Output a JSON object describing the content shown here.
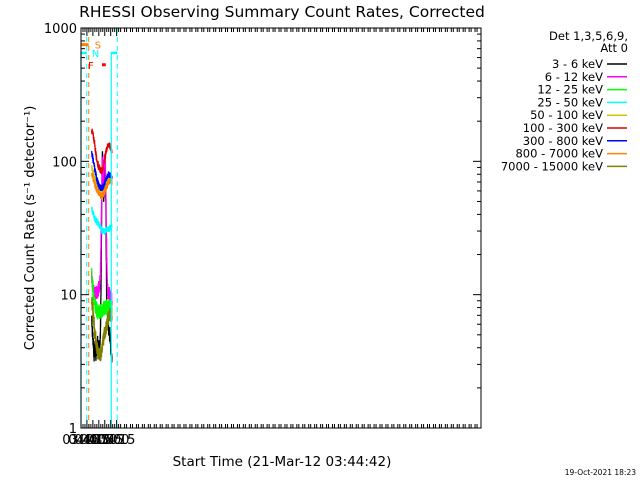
{
  "chart_data": {
    "type": "line",
    "title": "RHESSI Observing Summary Count Rates, Corrected",
    "xlabel": "Start Time (21-Mar-12 03:44:42)",
    "ylabel": "Corrected Count Rate (s⁻¹ detector⁻¹)",
    "yscale": "log",
    "ylim": [
      1,
      1000
    ],
    "xlim": [
      225,
      1235
    ],
    "x_ticks": [
      {
        "t": 225,
        "label": "03:45"
      },
      {
        "t": 240,
        "label": "04:00"
      },
      {
        "t": 255,
        "label": "04:15"
      },
      {
        "t": 270,
        "label": "04:30"
      },
      {
        "t": 285,
        "label": "04:45"
      },
      {
        "t": 300,
        "label": "05:00"
      },
      {
        "t": 315,
        "label": "05:15"
      }
    ],
    "y_ticks": [
      {
        "v": 1,
        "label": "1"
      },
      {
        "v": 10,
        "label": "10"
      },
      {
        "v": 100,
        "label": "100"
      },
      {
        "v": 1000,
        "label": "1000"
      }
    ],
    "legend_title": "Det 1,3,5,6,9,",
    "legend_subtitle": "Att 0",
    "series": [
      {
        "name": "3 - 6 keV",
        "color": "#000000",
        "points": [
          [
            252,
            7
          ],
          [
            254,
            5
          ],
          [
            256,
            4.5
          ],
          [
            258,
            3.5
          ],
          [
            260,
            4
          ],
          [
            263,
            3.5
          ],
          [
            266,
            4.5
          ],
          [
            269,
            4
          ],
          [
            272,
            4
          ],
          [
            274,
            5
          ],
          [
            276,
            15
          ],
          [
            277,
            40
          ],
          [
            278,
            80
          ],
          [
            279,
            110
          ],
          [
            280,
            100
          ],
          [
            281,
            70
          ],
          [
            282,
            55
          ],
          [
            283,
            60
          ],
          [
            284,
            85
          ],
          [
            285,
            105
          ],
          [
            286,
            100
          ],
          [
            287,
            70
          ],
          [
            288,
            40
          ],
          [
            289,
            20
          ],
          [
            290,
            10
          ],
          [
            291,
            8
          ],
          [
            293,
            6
          ],
          [
            295,
            5
          ],
          [
            298,
            5
          ],
          [
            300,
            4
          ],
          [
            303,
            3.5
          ]
        ]
      },
      {
        "name": "6 - 12 keV",
        "color": "#ff00ff",
        "points": [
          [
            252,
            14
          ],
          [
            254,
            12
          ],
          [
            256,
            11
          ],
          [
            258,
            10
          ],
          [
            260,
            10
          ],
          [
            263,
            10
          ],
          [
            266,
            10.5
          ],
          [
            269,
            11
          ],
          [
            272,
            12
          ],
          [
            274,
            14
          ],
          [
            276,
            30
          ],
          [
            277,
            55
          ],
          [
            278,
            80
          ],
          [
            279,
            100
          ],
          [
            280,
            95
          ],
          [
            281,
            80
          ],
          [
            282,
            70
          ],
          [
            283,
            80
          ],
          [
            284,
            100
          ],
          [
            285,
            105
          ],
          [
            286,
            100
          ],
          [
            287,
            75
          ],
          [
            288,
            50
          ],
          [
            289,
            30
          ],
          [
            290,
            20
          ],
          [
            291,
            14
          ],
          [
            293,
            11
          ],
          [
            295,
            10
          ],
          [
            298,
            10
          ],
          [
            300,
            9
          ],
          [
            303,
            9
          ]
        ]
      },
      {
        "name": "12 - 25 keV",
        "color": "#00ff00",
        "points": [
          [
            252,
            14
          ],
          [
            254,
            12
          ],
          [
            256,
            10
          ],
          [
            258,
            9
          ],
          [
            260,
            8.5
          ],
          [
            263,
            8
          ],
          [
            266,
            7.5
          ],
          [
            269,
            7.5
          ],
          [
            272,
            7.5
          ],
          [
            275,
            7.5
          ],
          [
            278,
            7.5
          ],
          [
            281,
            8
          ],
          [
            284,
            8
          ],
          [
            287,
            8
          ],
          [
            290,
            8
          ],
          [
            293,
            8
          ],
          [
            296,
            8
          ],
          [
            299,
            8
          ],
          [
            302,
            8
          ],
          [
            303,
            8
          ]
        ]
      },
      {
        "name": "25 - 50 keV",
        "color": "#00ffff",
        "points": [
          [
            252,
            45
          ],
          [
            254,
            42
          ],
          [
            256,
            40
          ],
          [
            258,
            38
          ],
          [
            260,
            37
          ],
          [
            263,
            36
          ],
          [
            266,
            35
          ],
          [
            269,
            34
          ],
          [
            272,
            33
          ],
          [
            275,
            32
          ],
          [
            278,
            30
          ],
          [
            281,
            30
          ],
          [
            284,
            30
          ],
          [
            287,
            30
          ],
          [
            290,
            31
          ],
          [
            293,
            31
          ],
          [
            296,
            31
          ],
          [
            299,
            32
          ],
          [
            302,
            32
          ],
          [
            303,
            32
          ]
        ]
      },
      {
        "name": "50 - 100 keV",
        "color": "#d2c800",
        "points": [
          [
            252,
            90
          ],
          [
            254,
            85
          ],
          [
            256,
            80
          ],
          [
            258,
            77
          ],
          [
            260,
            74
          ],
          [
            263,
            71
          ],
          [
            266,
            68
          ],
          [
            269,
            64
          ],
          [
            272,
            62
          ],
          [
            275,
            60
          ],
          [
            278,
            59
          ],
          [
            281,
            61
          ],
          [
            284,
            63
          ],
          [
            287,
            66
          ],
          [
            290,
            69
          ],
          [
            293,
            72
          ],
          [
            296,
            74
          ],
          [
            299,
            74
          ],
          [
            302,
            72
          ],
          [
            303,
            71
          ]
        ]
      },
      {
        "name": "100 - 300 keV",
        "color": "#e00000",
        "points": [
          [
            252,
            170
          ],
          [
            254,
            165
          ],
          [
            256,
            155
          ],
          [
            258,
            145
          ],
          [
            260,
            130
          ],
          [
            263,
            112
          ],
          [
            266,
            100
          ],
          [
            269,
            92
          ],
          [
            272,
            88
          ],
          [
            275,
            85
          ],
          [
            278,
            85
          ],
          [
            281,
            90
          ],
          [
            284,
            100
          ],
          [
            287,
            112
          ],
          [
            290,
            125
          ],
          [
            293,
            133
          ],
          [
            296,
            133
          ],
          [
            299,
            128
          ],
          [
            302,
            120
          ],
          [
            303,
            115
          ]
        ]
      },
      {
        "name": "300 - 800 keV",
        "color": "#0000ff",
        "points": [
          [
            252,
            115
          ],
          [
            254,
            108
          ],
          [
            256,
            100
          ],
          [
            258,
            93
          ],
          [
            260,
            86
          ],
          [
            263,
            78
          ],
          [
            266,
            72
          ],
          [
            269,
            67
          ],
          [
            272,
            64
          ],
          [
            275,
            63
          ],
          [
            278,
            63
          ],
          [
            281,
            65
          ],
          [
            284,
            68
          ],
          [
            287,
            72
          ],
          [
            290,
            76
          ],
          [
            293,
            79
          ],
          [
            296,
            80
          ],
          [
            299,
            79
          ],
          [
            302,
            76
          ],
          [
            303,
            74
          ]
        ]
      },
      {
        "name": "800 - 7000 keV",
        "color": "#ff8000",
        "points": [
          [
            252,
            82
          ],
          [
            254,
            78
          ],
          [
            256,
            74
          ],
          [
            258,
            70
          ],
          [
            260,
            67
          ],
          [
            263,
            63
          ],
          [
            266,
            60
          ],
          [
            269,
            58
          ],
          [
            272,
            56
          ],
          [
            275,
            55
          ],
          [
            278,
            55
          ],
          [
            281,
            57
          ],
          [
            284,
            59
          ],
          [
            287,
            62
          ],
          [
            290,
            65
          ],
          [
            293,
            68
          ],
          [
            296,
            71
          ],
          [
            299,
            72
          ],
          [
            302,
            71
          ],
          [
            303,
            70
          ]
        ]
      },
      {
        "name": "7000 - 15000 keV",
        "color": "#808000",
        "points": [
          [
            252,
            9
          ],
          [
            254,
            8
          ],
          [
            256,
            7
          ],
          [
            258,
            6
          ],
          [
            260,
            5
          ],
          [
            263,
            4.5
          ],
          [
            266,
            4
          ],
          [
            269,
            3.5
          ],
          [
            272,
            3.5
          ],
          [
            275,
            3.5
          ],
          [
            278,
            4
          ],
          [
            281,
            4.5
          ],
          [
            284,
            5
          ],
          [
            287,
            5.5
          ],
          [
            290,
            6
          ],
          [
            293,
            6.5
          ],
          [
            296,
            7
          ],
          [
            299,
            7
          ],
          [
            302,
            7
          ],
          [
            303,
            7
          ]
        ]
      }
    ],
    "annotations": {
      "S": {
        "label": "S",
        "color": "#ff8000",
        "flag_start": 225,
        "flag_end": 244.5,
        "level": 750,
        "dashed_line": 244.5
      },
      "N": {
        "label": "N",
        "color": "#00ffff",
        "segments": [
          [
            225,
            239.5
          ],
          [
            301.5,
            316.5
          ]
        ],
        "level": 650,
        "solid_lines": [
          225,
          301.5
        ],
        "dashed_lines": [
          239.5,
          316.5
        ]
      },
      "F": {
        "label": "F",
        "color": "#ff0000",
        "flag_start": 278,
        "flag_end": 287.5,
        "level": 530
      }
    }
  },
  "footer": {
    "date": "19-Oct-2021 18:23"
  }
}
